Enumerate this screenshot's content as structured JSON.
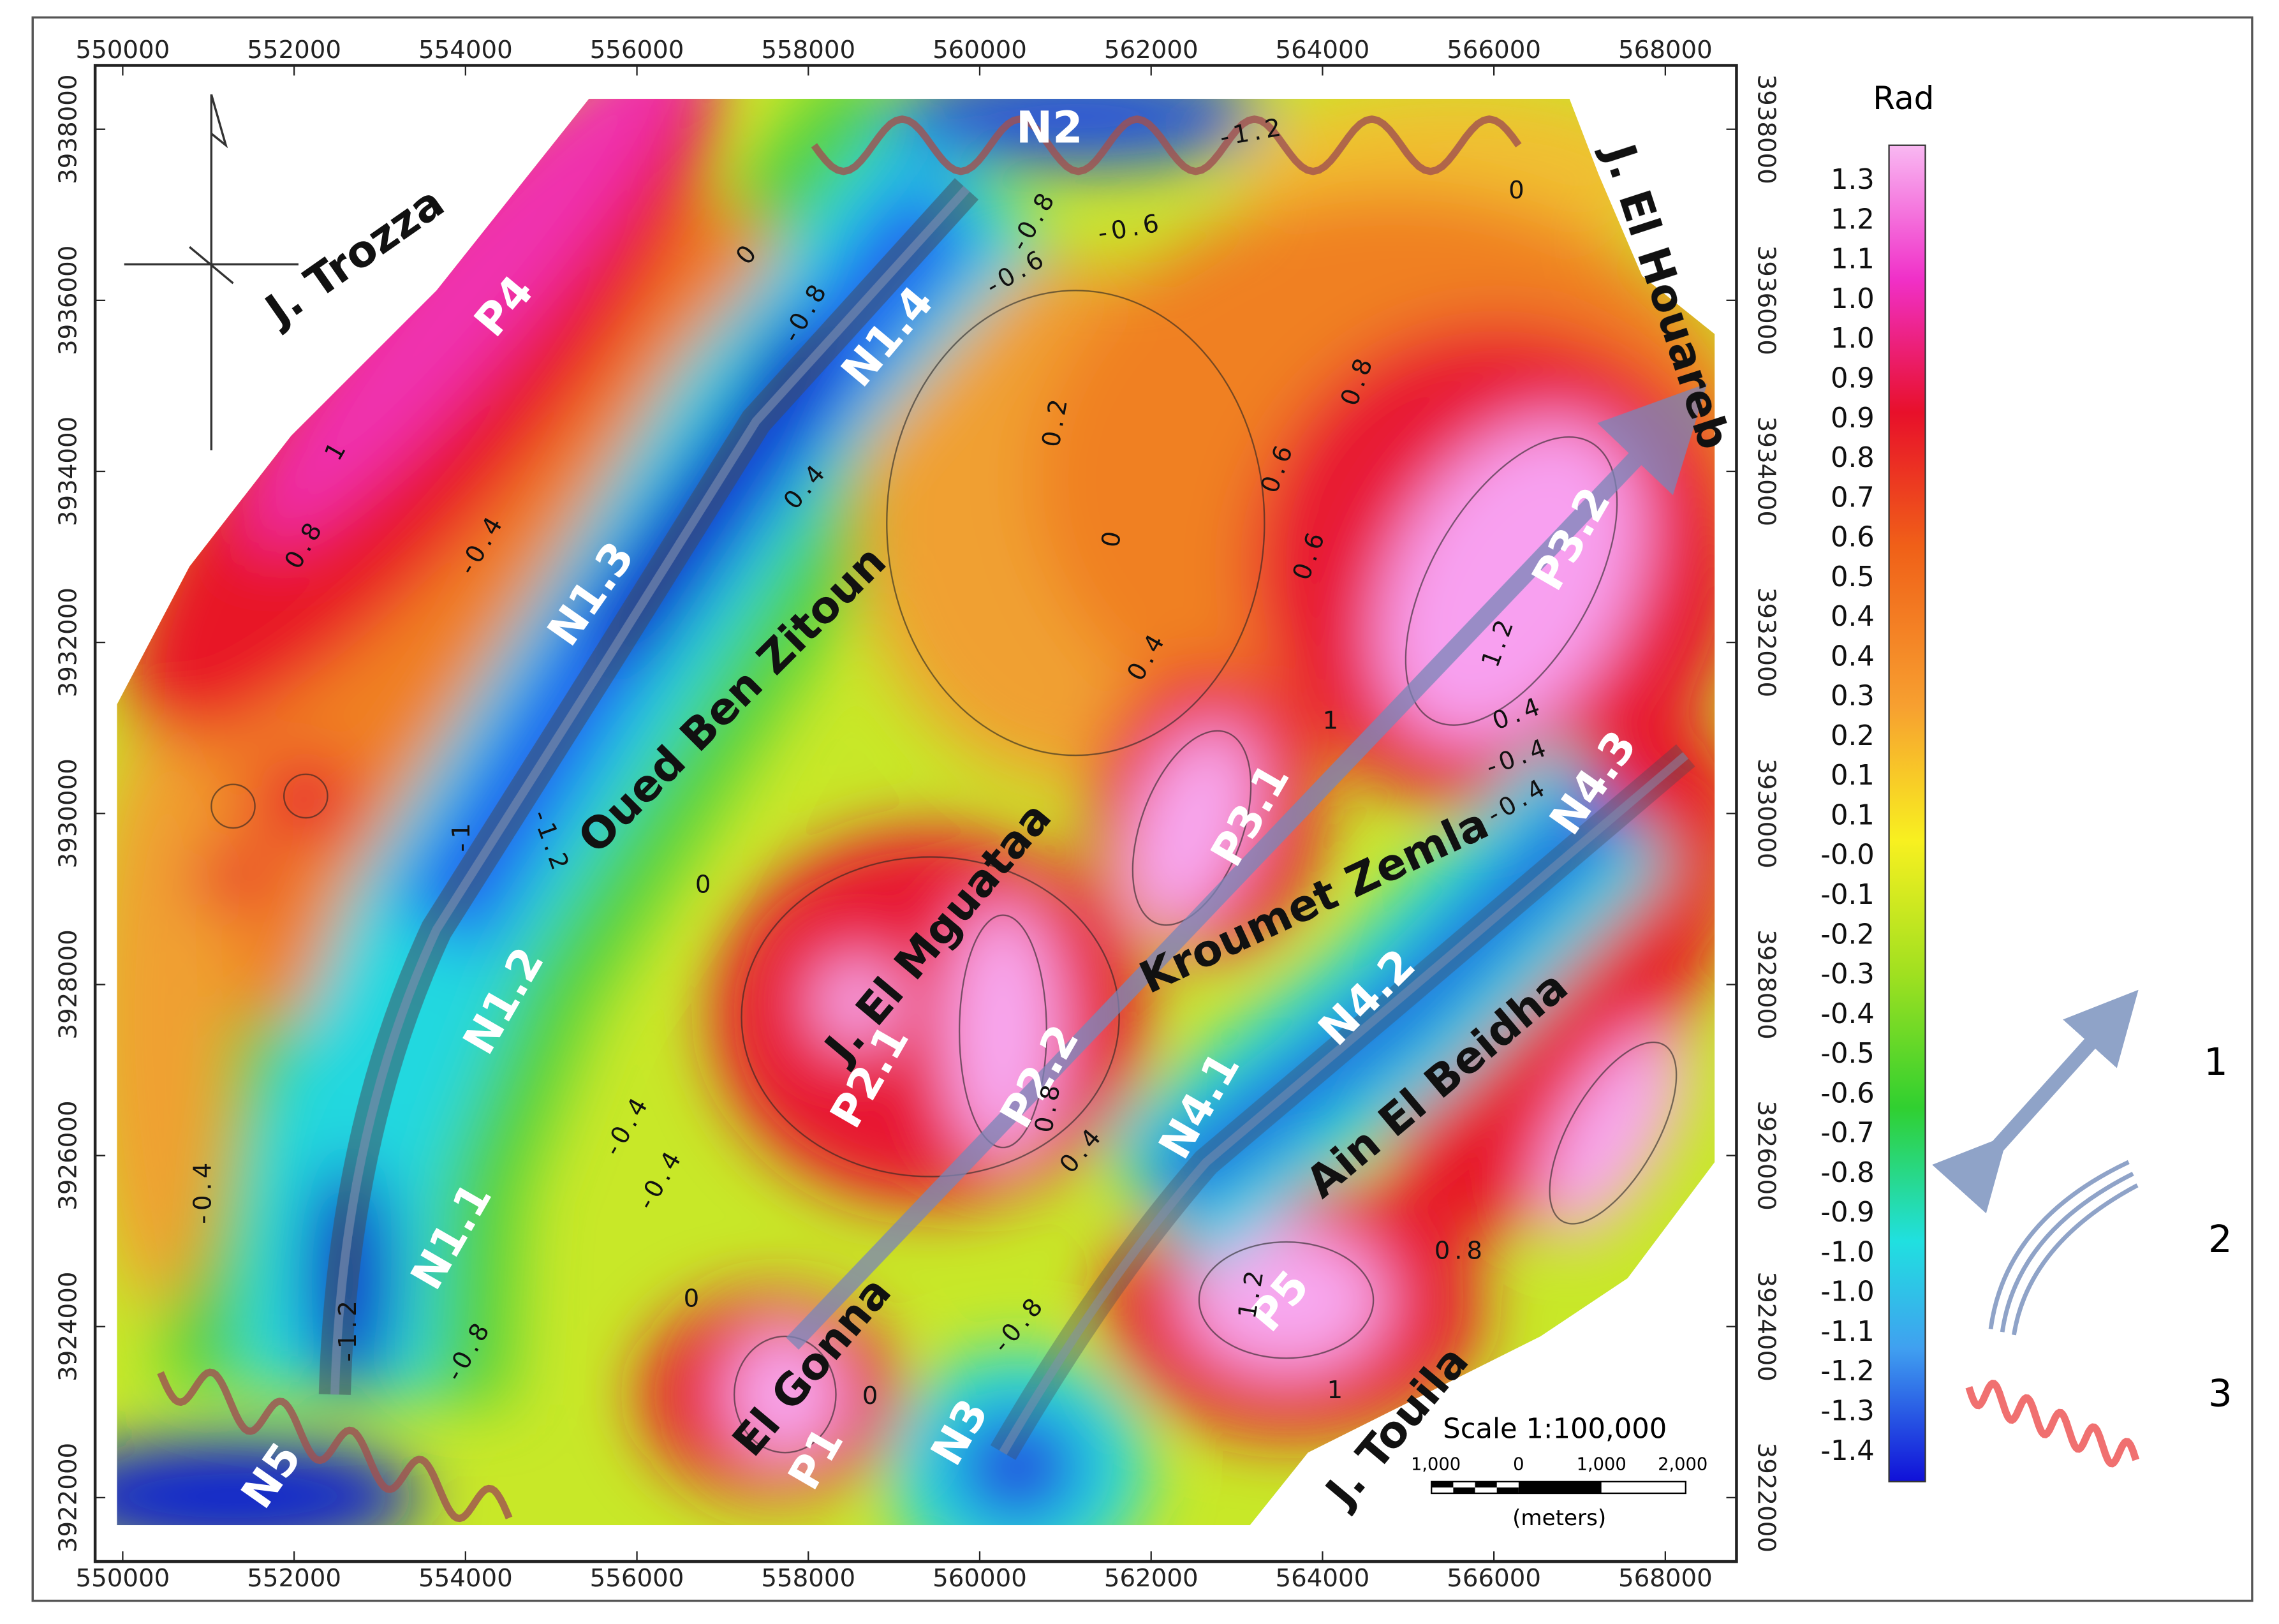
{
  "map": {
    "axes": {
      "x_ticks": [
        550000,
        552000,
        554000,
        556000,
        558000,
        560000,
        562000,
        564000,
        566000,
        568000
      ],
      "y_ticks": [
        3938000,
        3936000,
        3934000,
        3932000,
        3930000,
        3928000,
        3926000,
        3924000,
        3922000
      ]
    },
    "place_labels": [
      "J. Trozza",
      "P4",
      "N1.4",
      "N2",
      "J. El Houareb",
      "N1.3",
      "Oued Ben Zitoun",
      "P3.2",
      "P3.1",
      "J. El Mguataa",
      "Kroumet Zemla",
      "N4.3",
      "N1.2",
      "N4.2",
      "Ain El Beidha",
      "P2.1",
      "P2.2",
      "N4.1",
      "N1.1",
      "P5",
      "El Gonna",
      "N3",
      "P1",
      "N5",
      "J. Touila"
    ],
    "contour_labels": [
      "0.8",
      "1",
      "-0.4",
      "-1",
      "-1.2",
      "0",
      "-0.4",
      "-0.4",
      "-0.4",
      "0",
      "-0.8",
      "-1.2",
      "0.2",
      "0",
      "0.4",
      "-0.8",
      "-0.6",
      "-0.6",
      "-1.2",
      "0",
      "0.8",
      "0.6",
      "0.6",
      "1.2",
      "1",
      "0.4",
      "-0.4",
      "-0.4",
      "0.8",
      "0.4",
      "0.8",
      "1.2",
      "1",
      "-0.8",
      "0",
      "0.4",
      "0",
      "-0.8"
    ],
    "scale": {
      "title": "Scale 1:100,000",
      "ticks": [
        "1,000",
        "0",
        "1,000",
        "2,000"
      ],
      "unit": "(meters)"
    },
    "colorbar": {
      "title": "Rad",
      "labels": [
        "1.3",
        "1.2",
        "1.1",
        "1.0",
        "1.0",
        "0.9",
        "0.9",
        "0.8",
        "0.7",
        "0.6",
        "0.5",
        "0.4",
        "0.4",
        "0.3",
        "0.2",
        "0.1",
        "0.1",
        "-0.0",
        "-0.1",
        "-0.2",
        "-0.3",
        "-0.4",
        "-0.5",
        "-0.6",
        "-0.7",
        "-0.8",
        "-0.9",
        "-1.0",
        "-1.0",
        "-1.1",
        "-1.2",
        "-1.3",
        "-1.4"
      ]
    },
    "legend": [
      "1",
      "2",
      "3"
    ]
  }
}
